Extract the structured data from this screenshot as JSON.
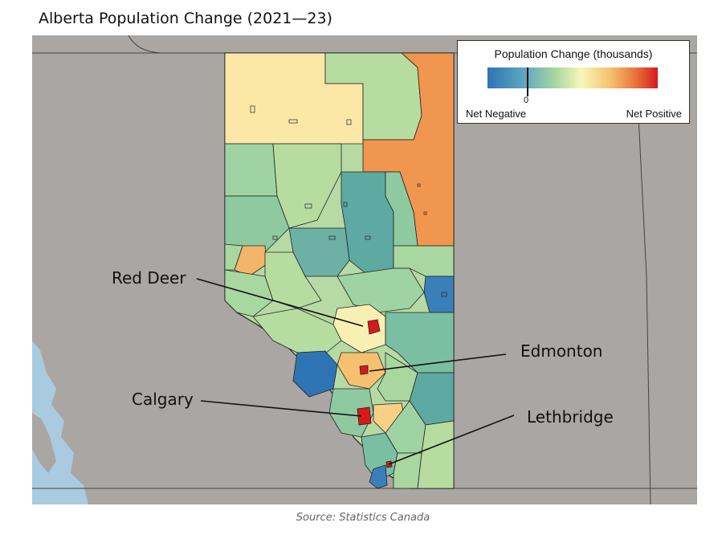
{
  "title": "Alberta Population Change (2021—23)",
  "legend": {
    "title": "Population Change (thousands)",
    "zero_label": "0",
    "negative_label": "Net Negative",
    "positive_label": "Net Positive",
    "colors": [
      "#2e74b5",
      "#a8d8a0",
      "#f7f7b7",
      "#f5c170",
      "#d7191c"
    ]
  },
  "cities": [
    {
      "name": "Red Deer"
    },
    {
      "name": "Edmonton"
    },
    {
      "name": "Calgary"
    },
    {
      "name": "Lethbridge"
    }
  ],
  "source": "Source: Statistics Canada",
  "colors": {
    "background_land": "#a9a6a3",
    "water": "#a9cbe0",
    "border": "#333333"
  }
}
